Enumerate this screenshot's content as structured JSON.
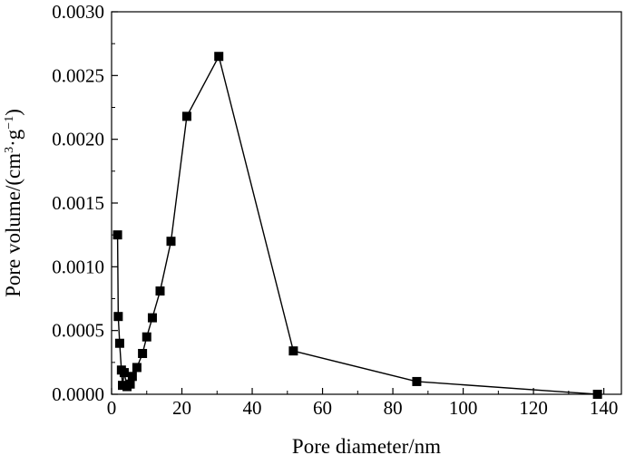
{
  "chart_data": {
    "type": "line",
    "xlabel": "Pore diameter/nm",
    "ylabel": {
      "prefix": "Pore volume/(cm",
      "sup1": "3",
      "mid": "·g",
      "sup2": "−1",
      "suffix": ")"
    },
    "xlim": [
      0,
      145
    ],
    "ylim": [
      0,
      0.003
    ],
    "x_ticks": [
      0,
      20,
      40,
      60,
      80,
      100,
      120,
      140
    ],
    "x_tick_labels": [
      "0",
      "20",
      "40",
      "60",
      "80",
      "100",
      "120",
      "140"
    ],
    "y_ticks": [
      0,
      0.0005,
      0.001,
      0.0015,
      0.002,
      0.0025,
      0.003
    ],
    "y_tick_labels": [
      "0.0000",
      "0.0005",
      "0.0010",
      "0.0015",
      "0.0020",
      "0.0025",
      "0.0030"
    ],
    "grid": false,
    "marker": "square",
    "series": [
      {
        "color": "#000000",
        "points": [
          [
            1.7,
            0.00125
          ],
          [
            1.9,
            0.00061
          ],
          [
            2.3,
            0.0004
          ],
          [
            2.8,
            0.00019
          ],
          [
            3.1,
            7e-05
          ],
          [
            3.6,
            0.00017
          ],
          [
            4.4,
            6e-05
          ],
          [
            5.3,
            8e-05
          ],
          [
            5.9,
            0.00014
          ],
          [
            7.2,
            0.00021
          ],
          [
            8.8,
            0.00032
          ],
          [
            10.0,
            0.00045
          ],
          [
            11.6,
            0.0006
          ],
          [
            13.8,
            0.00081
          ],
          [
            16.9,
            0.0012
          ],
          [
            21.4,
            0.00218
          ],
          [
            30.5,
            0.00265
          ],
          [
            51.7,
            0.00034
          ],
          [
            86.8,
            0.0001
          ],
          [
            138.2,
            0.0
          ]
        ]
      }
    ]
  }
}
